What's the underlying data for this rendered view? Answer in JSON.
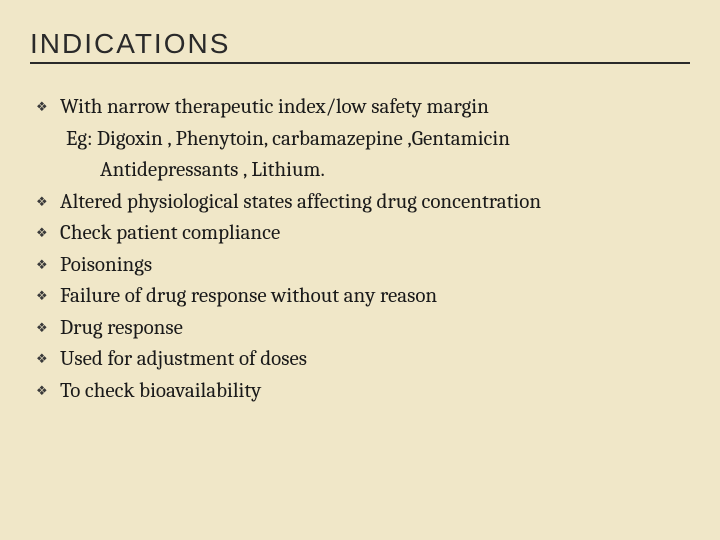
{
  "slide": {
    "title": "INDICATIONS",
    "background_color": "#f0e7c8",
    "title_color": "#2a2a2a",
    "title_fontsize": 28,
    "title_letter_spacing": 2,
    "rule_color": "#2a2a2a",
    "body_color": "#1a1a1a",
    "body_fontsize": 21,
    "bullet_glyph": "❖",
    "bullet_color": "#3a3a3a",
    "items": [
      {
        "text": "With narrow therapeutic index/low safety margin",
        "sublines": [
          "Eg: Digoxin , Phenytoin, carbamazepine ,Gentamicin",
          "Antidepressants , Lithium."
        ],
        "subline_indent_levels": [
          1,
          2
        ]
      },
      {
        "text": "Altered physiological states affecting drug concentration"
      },
      {
        "text": "Check patient compliance"
      },
      {
        "text": "Poisonings"
      },
      {
        "text": "Failure of drug response without any reason"
      },
      {
        "text": "Drug response"
      },
      {
        "text": "Used for adjustment of doses"
      },
      {
        "text": "To check bioavailability"
      }
    ]
  }
}
